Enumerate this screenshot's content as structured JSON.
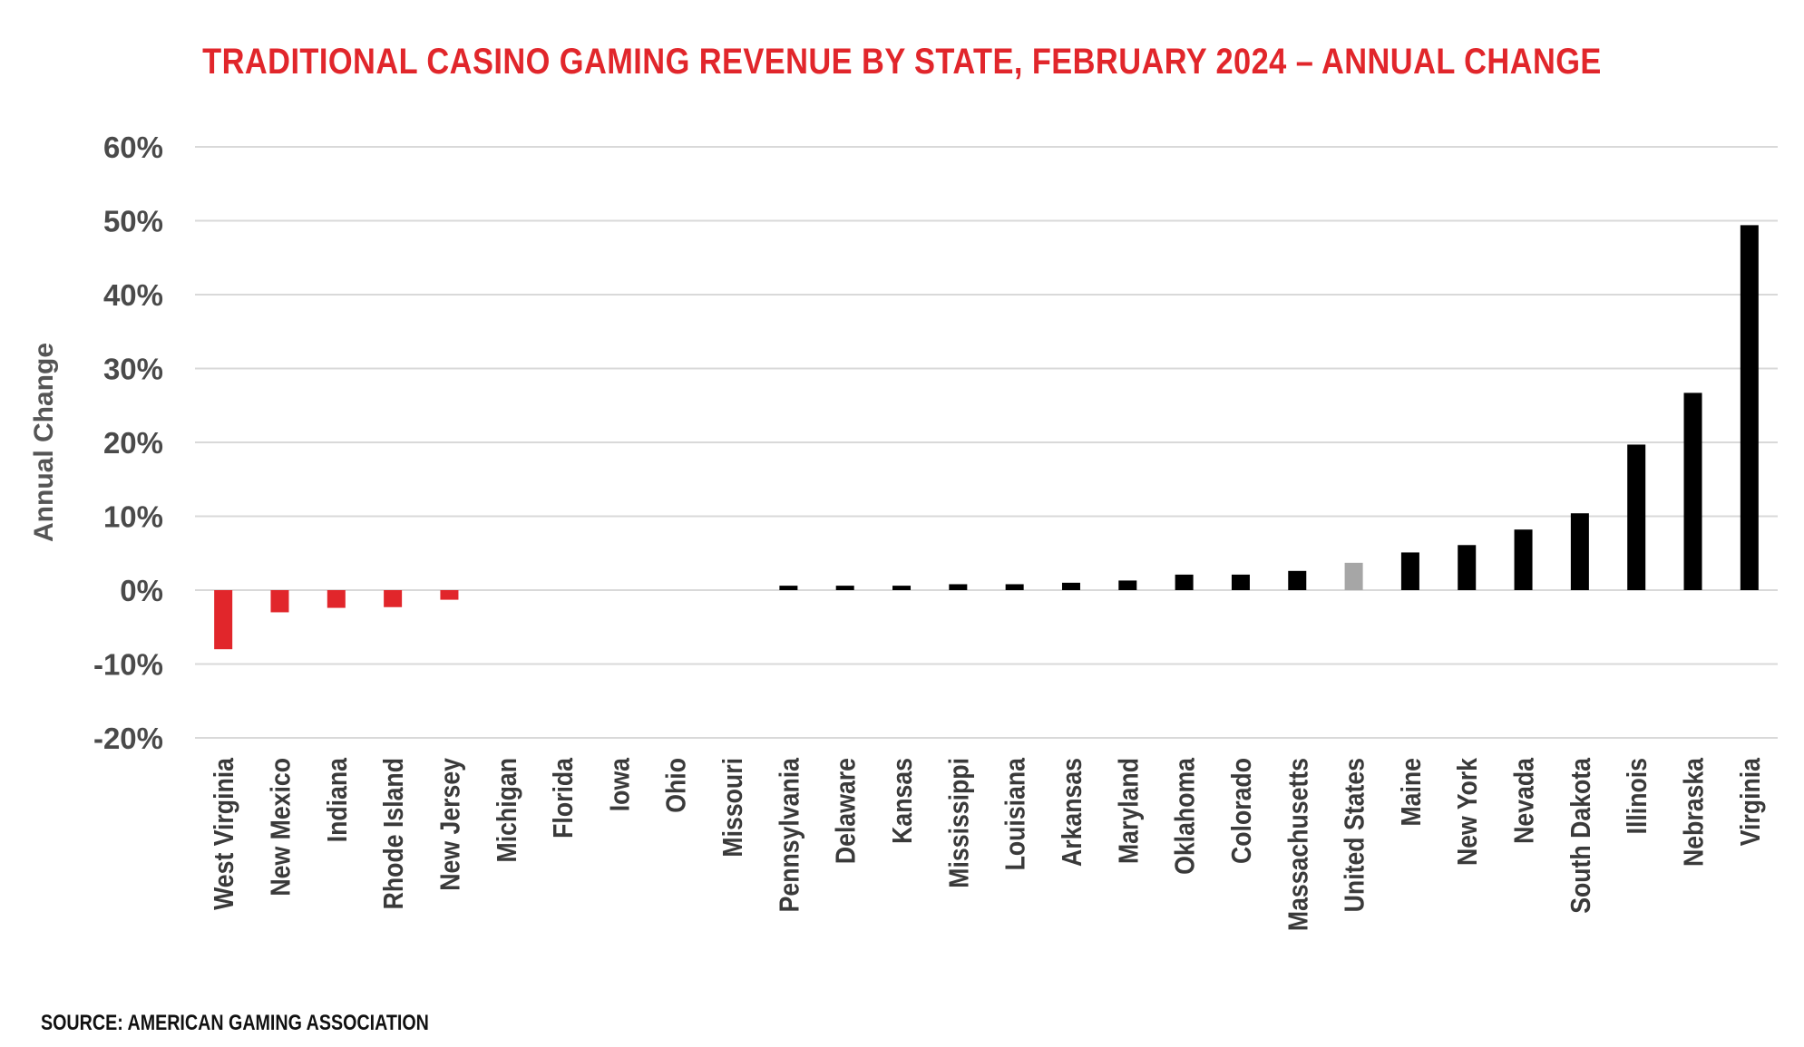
{
  "chart_data": {
    "type": "bar",
    "title": "TRADITIONAL CASINO GAMING REVENUE BY STATE, FEBRUARY 2024 – ANNUAL CHANGE",
    "xlabel": "",
    "ylabel": "Annual Change",
    "ylim": [
      -20,
      60
    ],
    "ytick_values": [
      -20,
      -10,
      0,
      10,
      20,
      30,
      40,
      50,
      60
    ],
    "ytick_labels": [
      "-20%",
      "-10%",
      "0%",
      "10%",
      "20%",
      "30%",
      "40%",
      "50%",
      "60%"
    ],
    "grid": true,
    "legend": "none",
    "categories": [
      "West Virginia",
      "New Mexico",
      "Indiana",
      "Rhode Island",
      "New Jersey",
      "Michigan",
      "Florida",
      "Iowa",
      "Ohio",
      "Missouri",
      "Pennsylvania",
      "Delaware",
      "Kansas",
      "Mississippi",
      "Louisiana",
      "Arkansas",
      "Maryland",
      "Oklahoma",
      "Colorado",
      "Massachusetts",
      "United States",
      "Maine",
      "New York",
      "Nevada",
      "South Dakota",
      "Illinois",
      "Nebraska",
      "Virginia"
    ],
    "values": [
      -8.0,
      -3.0,
      -2.4,
      -2.3,
      -1.3,
      0,
      0,
      0,
      0,
      0,
      0.6,
      0.6,
      0.6,
      0.8,
      0.8,
      1.0,
      1.3,
      2.1,
      2.1,
      2.6,
      3.7,
      5.1,
      6.1,
      8.2,
      10.4,
      19.7,
      26.7,
      49.4
    ],
    "colors": {
      "negative": "#e1262b",
      "positive": "#000000",
      "total": "#a6a6a6",
      "grid": "#d9d9d9",
      "title": "#e1262b"
    },
    "highlight_category": "United States"
  },
  "footer": {
    "source": "SOURCE: AMERICAN GAMING ASSOCIATION"
  }
}
